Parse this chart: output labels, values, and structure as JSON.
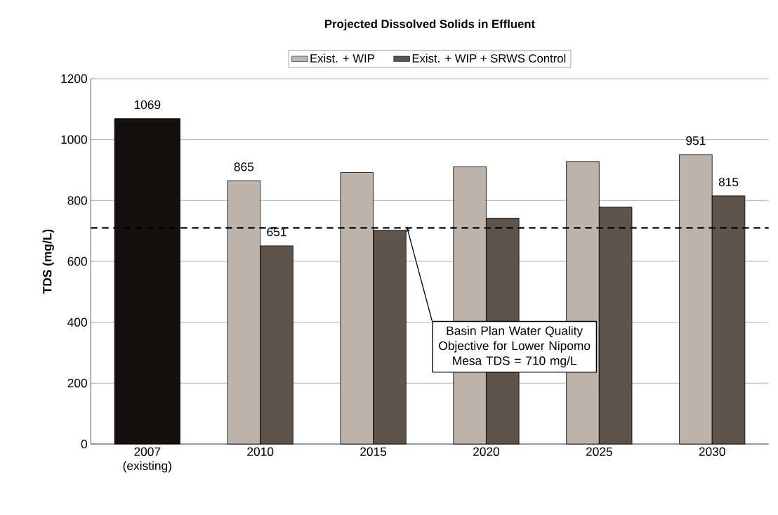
{
  "chart_data": {
    "type": "bar",
    "title": "Projected Dissolved Solids in Effluent",
    "ylabel": "TDS (mg/L)",
    "categories": [
      "2007 (existing)",
      "2010",
      "2015",
      "2020",
      "2025",
      "2030"
    ],
    "series": [
      {
        "name": "Exist. + WIP",
        "color": "#bcb4ac",
        "values": [
          null,
          865,
          892,
          911,
          928,
          951
        ],
        "value_labels": [
          null,
          "865",
          null,
          null,
          null,
          "951"
        ]
      },
      {
        "name": "Exist. + WIP + SRWS Control",
        "color": "#5e544c",
        "values": [
          null,
          651,
          702,
          742,
          778,
          815
        ],
        "value_labels": [
          null,
          "651",
          null,
          null,
          null,
          "815"
        ]
      },
      {
        "color": "#141010",
        "values": [
          1069,
          null,
          null,
          null,
          null,
          null
        ],
        "value_labels": [
          "1069",
          null,
          null,
          null,
          null,
          null
        ]
      }
    ],
    "ylim": [
      0,
      1200
    ],
    "yticks": [
      0,
      200,
      400,
      600,
      800,
      1000,
      1200
    ],
    "grid": "y",
    "legend": "top",
    "ref_lines": [
      {
        "axis": "y",
        "value": 710,
        "label": "Basin Plan Water Quality Objective for Lower Nipomo Mesa TDS = 710 mg/L",
        "color": "#000000",
        "line_style": "dashed"
      }
    ]
  }
}
